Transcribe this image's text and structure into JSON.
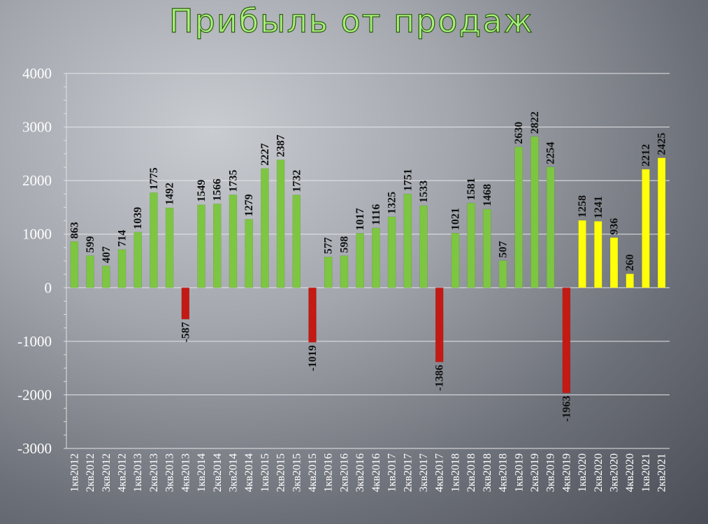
{
  "chart_data": {
    "type": "bar",
    "title": "Прибыль от продаж",
    "xlabel": "",
    "ylabel": "",
    "ylim": [
      -3000,
      4000
    ],
    "yticks": [
      "4000",
      "3000",
      "2000",
      "1000",
      "0",
      "-1000",
      "-2000",
      "-3000"
    ],
    "ytick_values": [
      4000,
      3000,
      2000,
      1000,
      0,
      -1000,
      -2000,
      -3000
    ],
    "grid": true,
    "legend": "none",
    "colors": {
      "positive": "#7dc641",
      "negative": "#c31a14",
      "highlight": "#ffff0a"
    },
    "categories": [
      "1кв2012",
      "2кв2012",
      "3кв2012",
      "4кв2012",
      "1кв2013",
      "2кв2013",
      "3кв2013",
      "4кв2013",
      "1кв2014",
      "2кв2014",
      "3кв2014",
      "4кв2014",
      "1кв2015",
      "2кв2015",
      "3кв2015",
      "4кв2015",
      "1кв2016",
      "2кв2016",
      "3кв2016",
      "4кв2016",
      "1кв2017",
      "2кв2017",
      "3кв2017",
      "4кв2017",
      "1кв2018",
      "2кв2018",
      "3кв2018",
      "4кв2018",
      "1кв2019",
      "2кв2019",
      "3кв2019",
      "4кв2019",
      "1кв2020",
      "2кв2020",
      "3кв2020",
      "4кв2020",
      "1кв2021",
      "2кв2021"
    ],
    "values": [
      863,
      599,
      407,
      714,
      1039,
      1775,
      1492,
      -587,
      1549,
      1566,
      1735,
      1279,
      2227,
      2387,
      1732,
      -1019,
      577,
      598,
      1017,
      1116,
      1325,
      1751,
      1533,
      -1386,
      1021,
      1581,
      1468,
      507,
      2630,
      2822,
      2254,
      -1963,
      1258,
      1241,
      936,
      260,
      2212,
      2425
    ],
    "value_labels": [
      "863",
      "599",
      "407",
      "714",
      "1039",
      "1775",
      "1492",
      "-587",
      "1549",
      "1566",
      "1735",
      "1279",
      "2227",
      "2387",
      "1732",
      "-1019",
      "577",
      "598",
      "1017",
      "1116",
      "1325",
      "1751",
      "1533",
      "-1386",
      "1021",
      "1581",
      "1468",
      "507",
      "2630",
      "2822",
      "2254",
      "-1963",
      "1258",
      "1241",
      "936",
      "260",
      "2212",
      "2425"
    ],
    "bar_color_groups": [
      "positive",
      "positive",
      "positive",
      "positive",
      "positive",
      "positive",
      "positive",
      "negative",
      "positive",
      "positive",
      "positive",
      "positive",
      "positive",
      "positive",
      "positive",
      "negative",
      "positive",
      "positive",
      "positive",
      "positive",
      "positive",
      "positive",
      "positive",
      "negative",
      "positive",
      "positive",
      "positive",
      "positive",
      "positive",
      "positive",
      "positive",
      "negative",
      "highlight",
      "highlight",
      "highlight",
      "highlight",
      "highlight",
      "highlight"
    ]
  }
}
